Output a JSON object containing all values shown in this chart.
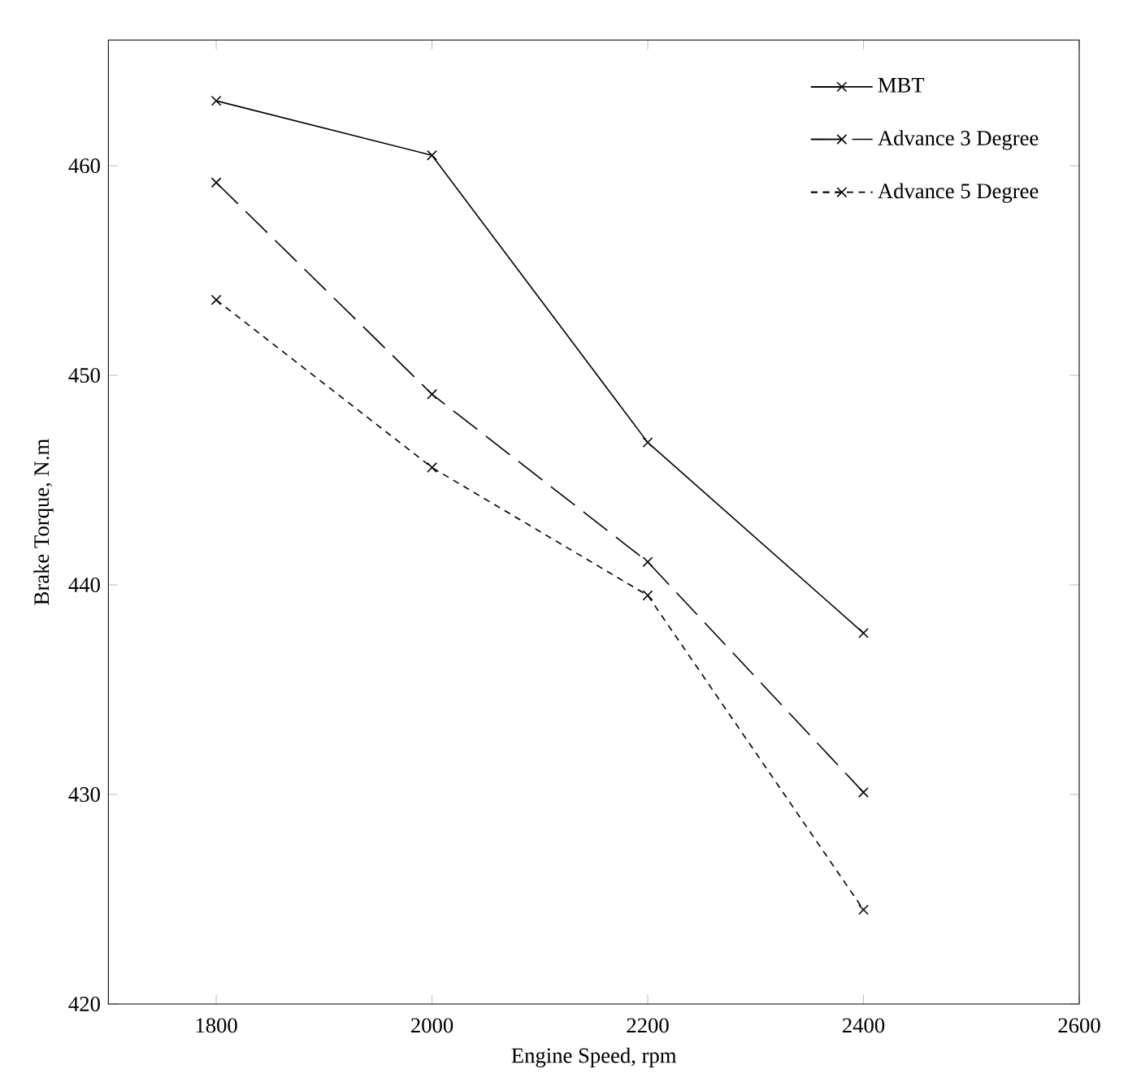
{
  "chart_data": {
    "type": "line",
    "xlabel": "Engine Speed, rpm",
    "ylabel": "Brake Torque, N.m",
    "x": [
      1800,
      2000,
      2200,
      2400
    ],
    "series": [
      {
        "name": "MBT",
        "color": "#000000",
        "line_style": "solid",
        "values": [
          463.1,
          460.5,
          446.8,
          437.7
        ]
      },
      {
        "name": "Advance 3 Degree",
        "color": "#000000",
        "line_style": "dashed",
        "values": [
          459.2,
          449.1,
          441.1,
          430.1
        ]
      },
      {
        "name": "Advance 5 Degree",
        "color": "#000000",
        "line_style": "dotted",
        "values": [
          453.6,
          445.6,
          439.5,
          424.5
        ]
      }
    ],
    "xlim": [
      1700,
      2600
    ],
    "ylim": [
      420,
      466
    ],
    "xticks": [
      1800,
      2000,
      2200,
      2400,
      2600
    ],
    "yticks": [
      420,
      430,
      440,
      450,
      460
    ],
    "marker": "cross",
    "legend": "top right",
    "grid": false
  }
}
